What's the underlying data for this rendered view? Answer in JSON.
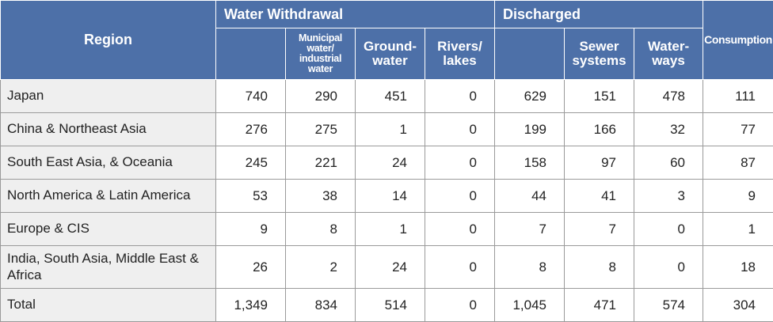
{
  "header": {
    "region": "Region",
    "water_withdrawal": "Water Withdrawal",
    "discharged": "Discharged",
    "consumption": "Consumption",
    "sub": [
      "Municipal\nwater/\nindustrial water",
      "Ground-\nwater",
      "Rivers/\nlakes",
      "Sewer\nsystems",
      "Water-\nways"
    ]
  },
  "table": {
    "rows": [
      [
        "Japan",
        "740",
        "290",
        "451",
        "0",
        "629",
        "151",
        "478",
        "111"
      ],
      [
        "China & Northeast Asia",
        "276",
        "275",
        "1",
        "0",
        "199",
        "166",
        "32",
        "77"
      ],
      [
        "South East Asia, & Oceania",
        "245",
        "221",
        "24",
        "0",
        "158",
        "97",
        "60",
        "87"
      ],
      [
        "North America & Latin America",
        "53",
        "38",
        "14",
        "0",
        "44",
        "41",
        "3",
        "9"
      ],
      [
        "Europe & CIS",
        "9",
        "8",
        "1",
        "0",
        "7",
        "7",
        "0",
        "1"
      ],
      [
        "India, South Asia, Middle East & Africa",
        "26",
        "2",
        "24",
        "0",
        "8",
        "8",
        "0",
        "18"
      ],
      [
        "Total",
        "1,349",
        "834",
        "514",
        "0",
        "1,045",
        "471",
        "574",
        "304"
      ]
    ]
  }
}
